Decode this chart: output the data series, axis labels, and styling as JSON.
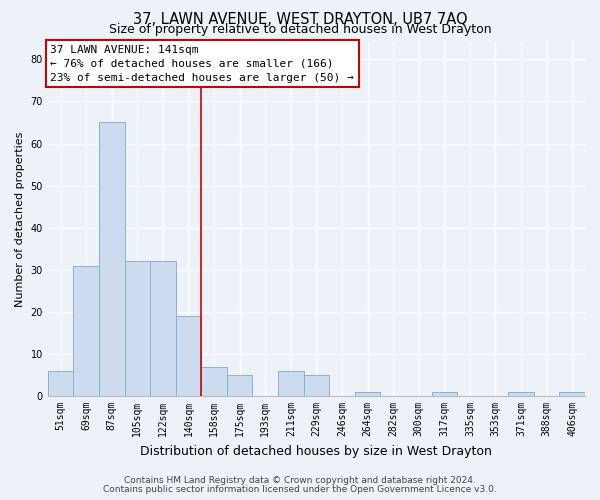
{
  "title": "37, LAWN AVENUE, WEST DRAYTON, UB7 7AQ",
  "subtitle": "Size of property relative to detached houses in West Drayton",
  "xlabel": "Distribution of detached houses by size in West Drayton",
  "ylabel": "Number of detached properties",
  "bar_labels": [
    "51sqm",
    "69sqm",
    "87sqm",
    "105sqm",
    "122sqm",
    "140sqm",
    "158sqm",
    "175sqm",
    "193sqm",
    "211sqm",
    "229sqm",
    "246sqm",
    "264sqm",
    "282sqm",
    "300sqm",
    "317sqm",
    "335sqm",
    "353sqm",
    "371sqm",
    "388sqm",
    "406sqm"
  ],
  "bar_values": [
    6,
    31,
    65,
    32,
    32,
    19,
    7,
    5,
    0,
    6,
    5,
    0,
    1,
    0,
    0,
    1,
    0,
    0,
    1,
    0,
    1
  ],
  "bar_color": "#ccdcee",
  "bar_edge_color": "#8ab0d0",
  "vline_x_index": 5.5,
  "vline_color": "#cc0000",
  "annotation_lines": [
    "37 LAWN AVENUE: 141sqm",
    "← 76% of detached houses are smaller (166)",
    "23% of semi-detached houses are larger (50) →"
  ],
  "ylim": [
    0,
    84
  ],
  "yticks": [
    0,
    10,
    20,
    30,
    40,
    50,
    60,
    70,
    80
  ],
  "footnote1": "Contains HM Land Registry data © Crown copyright and database right 2024.",
  "footnote2": "Contains public sector information licensed under the Open Government Licence v3.0.",
  "bg_color": "#edf2f9",
  "grid_color": "#ffffff",
  "title_fontsize": 10.5,
  "subtitle_fontsize": 9,
  "xlabel_fontsize": 9,
  "ylabel_fontsize": 8,
  "tick_fontsize": 7,
  "annotation_fontsize": 8,
  "footnote_fontsize": 6.5
}
